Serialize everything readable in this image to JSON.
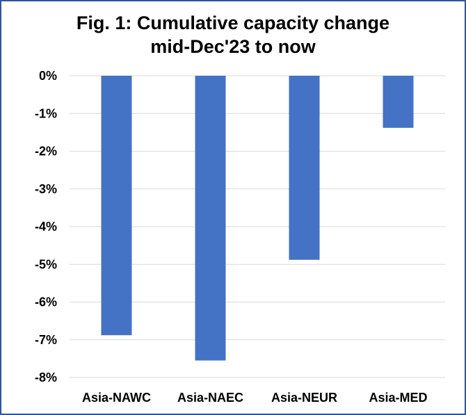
{
  "chart_data": {
    "type": "bar",
    "title_line1": "Fig. 1: Cumulative capacity change",
    "title_line2": "mid-Dec'23 to now",
    "xlabel": "",
    "ylabel": "",
    "categories": [
      "Asia-NAWC",
      "Asia-NAEC",
      "Asia-NEUR",
      "Asia-MED"
    ],
    "values": [
      -6.88,
      -7.55,
      -4.88,
      -1.38
    ],
    "unit": "%",
    "ylim": [
      -8,
      0
    ],
    "yticks": [
      0,
      -1,
      -2,
      -3,
      -4,
      -5,
      -6,
      -7,
      -8
    ],
    "ytick_labels": [
      "0%",
      "-1%",
      "-2%",
      "-3%",
      "-4%",
      "-5%",
      "-6%",
      "-7%",
      "-8%"
    ],
    "grid": true,
    "legend": "none",
    "colors": {
      "bar": "#4472c4",
      "grid": "#d9d9d9",
      "border": "#2f5597"
    }
  }
}
